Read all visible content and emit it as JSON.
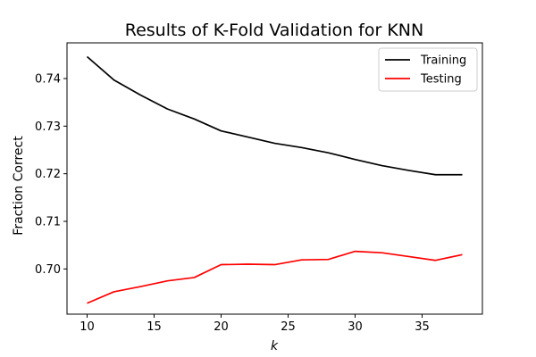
{
  "chart_data": {
    "type": "line",
    "title": "Results of K-Fold Validation for KNN",
    "xlabel": "k",
    "ylabel": "Fraction Correct",
    "x": [
      10,
      12,
      14,
      16,
      18,
      20,
      22,
      24,
      26,
      28,
      30,
      32,
      34,
      36,
      38
    ],
    "xlim": [
      8.5,
      39.5
    ],
    "ylim": [
      0.6905,
      0.7475
    ],
    "xticks": [
      10,
      15,
      20,
      25,
      30,
      35
    ],
    "xtick_labels": [
      "10",
      "15",
      "20",
      "25",
      "30",
      "35"
    ],
    "yticks": [
      0.7,
      0.71,
      0.72,
      0.73,
      0.74
    ],
    "ytick_labels": [
      "0.70",
      "0.71",
      "0.72",
      "0.73",
      "0.74"
    ],
    "grid": false,
    "legend_position": "top-right",
    "series": [
      {
        "name": "Training",
        "color": "#000000",
        "values": [
          0.7446,
          0.7397,
          0.7365,
          0.7336,
          0.7315,
          0.729,
          0.7277,
          0.7264,
          0.7255,
          0.7244,
          0.723,
          0.7217,
          0.7207,
          0.7198,
          0.7198
        ]
      },
      {
        "name": "Testing",
        "color": "#ff0000",
        "values": [
          0.6928,
          0.6952,
          0.6963,
          0.6975,
          0.6982,
          0.7009,
          0.701,
          0.7009,
          0.7019,
          0.702,
          0.7037,
          0.7034,
          0.7026,
          0.7018,
          0.703
        ]
      }
    ]
  }
}
